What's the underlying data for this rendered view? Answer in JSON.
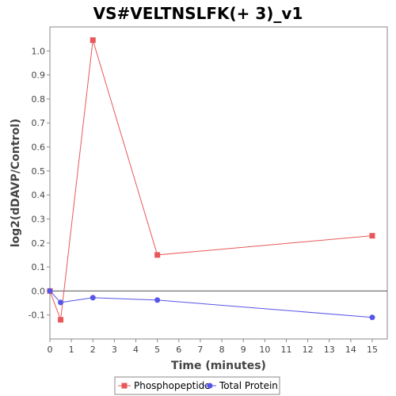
{
  "chart_data": {
    "type": "line",
    "title": "VS#VELTNSLFK(+ 3)_v1",
    "xlabel": "Time (minutes)",
    "ylabel": "log2(dDAVP/Control)",
    "xlim": [
      0,
      15.7
    ],
    "ylim": [
      -0.2,
      1.1
    ],
    "x_ticks": [
      0,
      1,
      2,
      3,
      4,
      5,
      6,
      7,
      8,
      9,
      10,
      11,
      12,
      13,
      14,
      15
    ],
    "y_ticks": [
      -0.1,
      0.0,
      0.1,
      0.2,
      0.3,
      0.4,
      0.5,
      0.6,
      0.7,
      0.8,
      0.9,
      1.0
    ],
    "y_tick_labels": [
      "-0.1",
      "0.0",
      "0.1",
      "0.2",
      "0.3",
      "0.4",
      "0.5",
      "0.6",
      "0.7",
      "0.8",
      "0.9",
      "1.0"
    ],
    "zero_line": true,
    "grid": false,
    "legend_position": "bottom",
    "series": [
      {
        "name": "Phosphopeptide",
        "color": "#e8585a",
        "marker": "square",
        "x": [
          0,
          0.5,
          2,
          5,
          15
        ],
        "y": [
          0.0,
          -0.12,
          1.045,
          0.15,
          0.23
        ]
      },
      {
        "name": "Total Protein",
        "color": "#5555e8",
        "marker": "circle",
        "x": [
          0,
          0.5,
          2,
          5,
          15
        ],
        "y": [
          0.0,
          -0.048,
          -0.028,
          -0.038,
          -0.11
        ]
      }
    ]
  }
}
